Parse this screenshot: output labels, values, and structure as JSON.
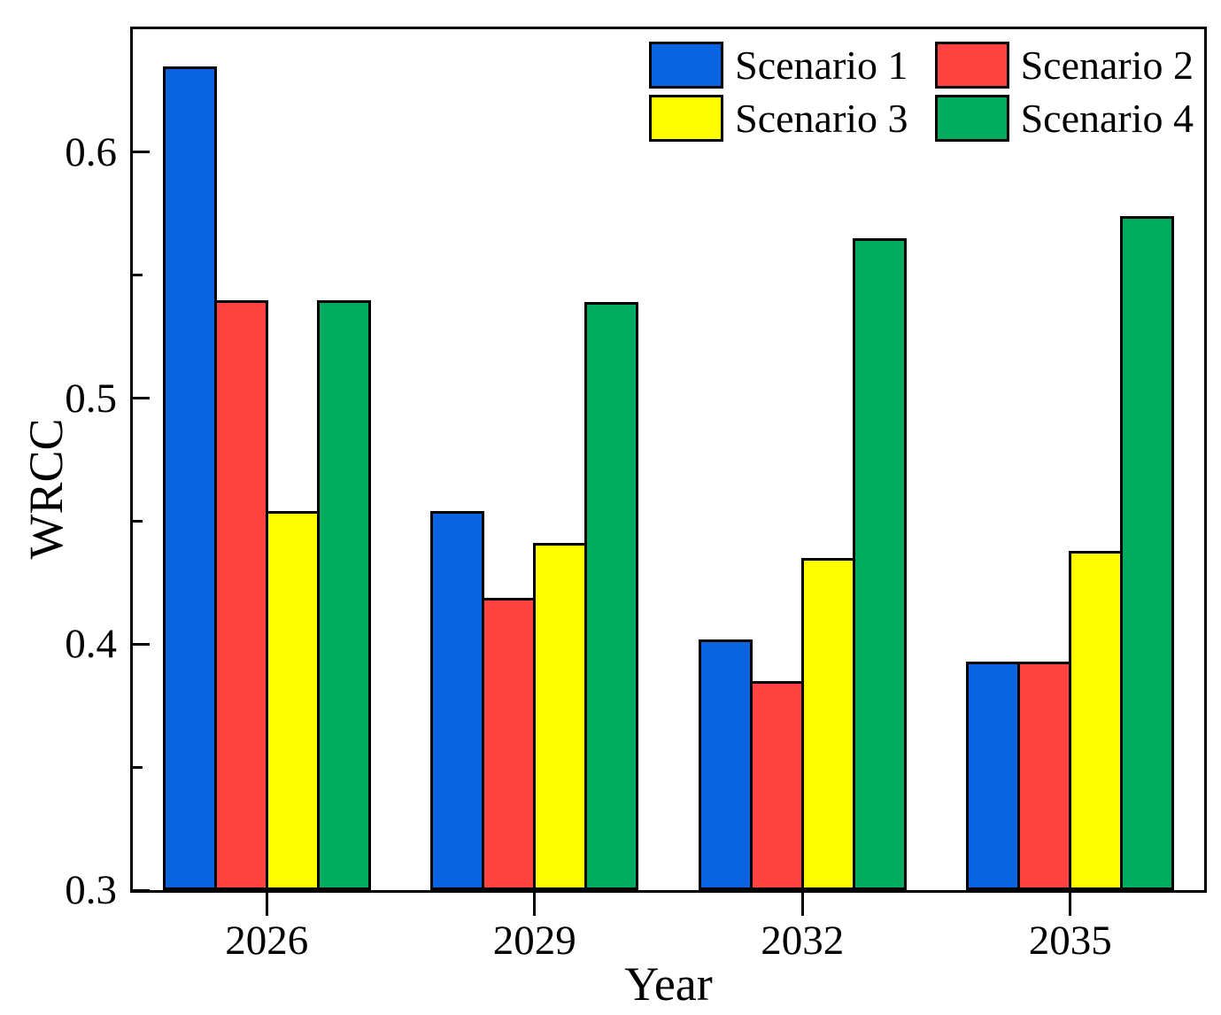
{
  "chart_data": {
    "type": "bar",
    "title": "",
    "xlabel": "Year",
    "ylabel": "WRCC",
    "categories": [
      "2026",
      "2029",
      "2032",
      "2035"
    ],
    "series": [
      {
        "name": "Scenario 1",
        "color": "#0A64DF",
        "values": [
          0.635,
          0.454,
          0.402,
          0.393
        ]
      },
      {
        "name": "Scenario 2",
        "color": "#FF4341",
        "values": [
          0.54,
          0.419,
          0.385,
          0.393
        ]
      },
      {
        "name": "Scenario 3",
        "color": "#FFFF00",
        "values": [
          0.454,
          0.441,
          0.435,
          0.438
        ]
      },
      {
        "name": "Scenario 4",
        "color": "#00AA5E",
        "values": [
          0.54,
          0.539,
          0.565,
          0.574
        ]
      }
    ],
    "ylim": [
      0.3,
      0.65
    ],
    "yticks": [
      0.3,
      0.4,
      0.5,
      0.6
    ],
    "ytick_labels": [
      "0.3",
      "0.4",
      "0.5",
      "0.6"
    ],
    "yticks_minor": [
      0.35,
      0.45,
      0.55
    ],
    "grid": false,
    "legend_position": "top-right-inside",
    "axis_color": "#000000",
    "bar_border_color": "#000000"
  }
}
